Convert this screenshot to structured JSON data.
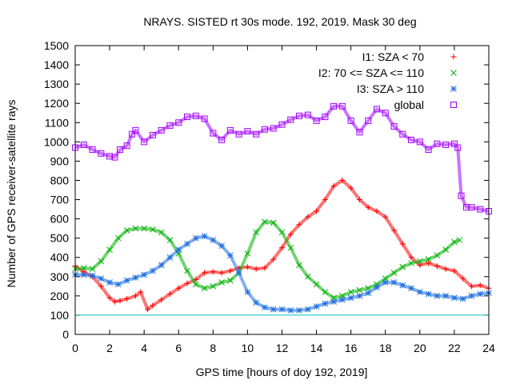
{
  "chart_data": {
    "type": "scatter",
    "title": "NRAYS. SISTED rt 30s mode. 192, 2019. Mask 30 deg",
    "xlabel": "GPS time [hours of doy 192, 2019]",
    "ylabel": "Number of GPS receiver-satellite rays",
    "xlim": [
      0,
      24
    ],
    "ylim": [
      0,
      1500
    ],
    "xticks": [
      "0",
      "2",
      "4",
      "6",
      "8",
      "10",
      "12",
      "14",
      "16",
      "18",
      "20",
      "22",
      "24"
    ],
    "yticks": [
      "0",
      "100",
      "200",
      "300",
      "400",
      "500",
      "600",
      "700",
      "800",
      "900",
      "1000",
      "1100",
      "1200",
      "1300",
      "1400",
      "1500"
    ],
    "legend_position": "top-right",
    "reference_line": {
      "y": 100,
      "color": "#00c0c0"
    },
    "series": [
      {
        "name": "I1: SZA < 70",
        "marker": "+",
        "color": "#ff0000",
        "x": [
          0,
          0.5,
          1,
          1.5,
          2,
          2.3,
          2.6,
          3,
          3.5,
          3.8,
          4.2,
          4.5,
          5,
          5.5,
          6,
          6.5,
          7,
          7.5,
          8,
          8.5,
          9,
          9.5,
          10,
          10.5,
          11,
          11.5,
          12,
          12.5,
          13,
          13.5,
          14,
          14.5,
          15,
          15.5,
          16,
          16.5,
          17,
          17.5,
          18,
          18.5,
          19,
          19.5,
          20,
          20.5,
          21,
          21.5,
          22,
          22.5,
          23,
          23.5,
          24
        ],
        "y": [
          355,
          325,
          300,
          250,
          190,
          170,
          175,
          185,
          200,
          220,
          130,
          150,
          180,
          210,
          240,
          265,
          285,
          320,
          325,
          320,
          330,
          345,
          350,
          340,
          345,
          390,
          450,
          520,
          570,
          610,
          640,
          700,
          770,
          800,
          760,
          700,
          660,
          640,
          610,
          540,
          470,
          400,
          360,
          370,
          355,
          340,
          330,
          290,
          250,
          255,
          240
        ]
      },
      {
        "name": "I2: 70 <= SZA <= 110",
        "marker": "x",
        "color": "#00b000",
        "x": [
          0,
          0.5,
          1,
          1.5,
          2,
          2.5,
          3,
          3.5,
          4,
          4.5,
          5,
          5.5,
          6,
          6.5,
          7,
          7.5,
          8,
          8.5,
          9,
          9.5,
          10,
          10.5,
          11,
          11.5,
          12,
          12.5,
          13,
          13.5,
          14,
          14.5,
          15,
          15.5,
          16,
          16.5,
          17,
          17.5,
          18,
          18.5,
          19,
          19.5,
          20,
          20.5,
          21,
          21.5,
          22,
          22.3
        ],
        "y": [
          340,
          345,
          340,
          380,
          440,
          500,
          540,
          550,
          550,
          545,
          530,
          490,
          420,
          330,
          260,
          240,
          250,
          270,
          280,
          320,
          420,
          530,
          585,
          580,
          530,
          450,
          360,
          300,
          260,
          220,
          190,
          200,
          220,
          230,
          240,
          260,
          290,
          320,
          350,
          370,
          380,
          390,
          410,
          440,
          480,
          490
        ]
      },
      {
        "name": "I3: SZA > 110",
        "marker": "*",
        "color": "#2070e0",
        "x": [
          0,
          0.5,
          1,
          1.5,
          2,
          2.5,
          3,
          3.5,
          4,
          4.5,
          5,
          5.5,
          6,
          6.5,
          7,
          7.5,
          8,
          8.5,
          9,
          9.5,
          10,
          10.5,
          11,
          11.5,
          12,
          12.5,
          13,
          13.5,
          14,
          14.5,
          15,
          15.5,
          16,
          16.5,
          17,
          17.5,
          18,
          18.5,
          19,
          19.5,
          20,
          20.5,
          21,
          21.5,
          22,
          22.5,
          23,
          23.5,
          24
        ],
        "y": [
          310,
          310,
          305,
          290,
          270,
          260,
          280,
          295,
          310,
          330,
          360,
          400,
          440,
          470,
          500,
          510,
          490,
          460,
          410,
          320,
          220,
          165,
          140,
          130,
          130,
          125,
          125,
          130,
          145,
          160,
          170,
          180,
          190,
          200,
          215,
          245,
          270,
          270,
          255,
          240,
          220,
          210,
          200,
          200,
          190,
          185,
          200,
          210,
          215
        ]
      },
      {
        "name": "global",
        "marker": "square",
        "color": "#a000ff",
        "x": [
          0,
          0.5,
          1,
          1.5,
          2,
          2.3,
          2.6,
          3,
          3.3,
          3.5,
          4,
          4.5,
          5,
          5.5,
          6,
          6.5,
          7,
          7.5,
          8,
          8.5,
          9,
          9.5,
          10,
          10.5,
          11,
          11.5,
          12,
          12.5,
          13,
          13.5,
          14,
          14.5,
          15,
          15.5,
          16,
          16.5,
          17,
          17.5,
          18,
          18.5,
          19,
          19.5,
          20,
          20.5,
          21,
          21.5,
          22,
          22.2,
          22.4,
          22.7,
          23,
          23.5,
          24
        ],
        "y": [
          970,
          985,
          960,
          940,
          925,
          920,
          960,
          980,
          1040,
          1060,
          1000,
          1035,
          1060,
          1085,
          1100,
          1130,
          1135,
          1120,
          1045,
          1010,
          1060,
          1040,
          1055,
          1040,
          1065,
          1070,
          1090,
          1115,
          1135,
          1140,
          1110,
          1130,
          1185,
          1185,
          1110,
          1050,
          1110,
          1170,
          1150,
          1080,
          1040,
          1010,
          1000,
          960,
          990,
          985,
          990,
          970,
          720,
          660,
          660,
          650,
          640
        ]
      }
    ]
  }
}
